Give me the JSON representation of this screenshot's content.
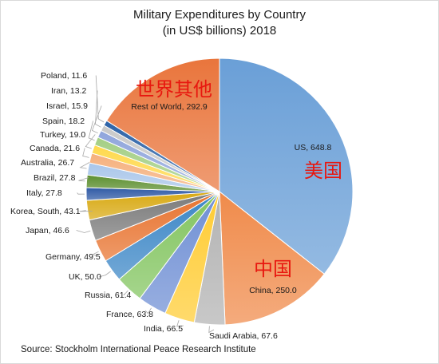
{
  "chart_data": {
    "type": "pie",
    "title_line1": "Military Expenditures by Country",
    "title_line2": "(in US$ billions) 2018",
    "source": "Source: Stockholm International Peace Research Institute",
    "slices": [
      {
        "name": "US",
        "value": 648.8,
        "color": "#6a9fd7",
        "label": "US, 648.8"
      },
      {
        "name": "China",
        "value": 250.0,
        "color": "#f08b4b",
        "label": "China, 250.0"
      },
      {
        "name": "Saudi Arabia",
        "value": 67.6,
        "color": "#b3b3b3",
        "label": "Saudi Arabia, 67.6"
      },
      {
        "name": "India",
        "value": 66.5,
        "color": "#ffcc33",
        "label": "India, 66.5"
      },
      {
        "name": "France",
        "value": 63.8,
        "color": "#6f8fd4",
        "label": "France, 63.8"
      },
      {
        "name": "Russia",
        "value": 61.4,
        "color": "#82c45f",
        "label": "Russia, 61.4"
      },
      {
        "name": "UK",
        "value": 50.0,
        "color": "#3b86c6",
        "label": "UK, 50.0"
      },
      {
        "name": "Germany",
        "value": 49.5,
        "color": "#e8732f",
        "label": "Germany, 49.5"
      },
      {
        "name": "Japan",
        "value": 46.6,
        "color": "#7a7a7a",
        "label": "Japan, 46.6"
      },
      {
        "name": "Korea, South",
        "value": 43.1,
        "color": "#d8a913",
        "label": "Korea, South, 43.1"
      },
      {
        "name": "Italy",
        "value": 27.8,
        "color": "#2f5aa5",
        "label": "Italy, 27.8"
      },
      {
        "name": "Brazil",
        "value": 27.8,
        "color": "#5c8f2f",
        "label": "Brazil, 27.8"
      },
      {
        "name": "Australia",
        "value": 26.7,
        "color": "#a9c6ea",
        "label": "Australia, 26.7"
      },
      {
        "name": "Canada",
        "value": 21.6,
        "color": "#f5b07d",
        "label": "Canada, 21.6"
      },
      {
        "name": "Turkey",
        "value": 19.0,
        "color": "#ffd94d",
        "label": "Turkey, 19.0"
      },
      {
        "name": "Spain",
        "value": 18.2,
        "color": "#a4cf85",
        "label": "Spain, 18.2"
      },
      {
        "name": "Israel",
        "value": 15.9,
        "color": "#8fa5dc",
        "label": "Israel, 15.9"
      },
      {
        "name": "Iran",
        "value": 13.2,
        "color": "#c9c9c9",
        "label": "Iran, 13.2"
      },
      {
        "name": "Poland",
        "value": 11.6,
        "color": "#2d63a8",
        "label": "Poland, 11.6"
      },
      {
        "name": "Rest of World",
        "value": 292.9,
        "color": "#e9753c",
        "label": "Rest of World, 292.9"
      }
    ],
    "annotations": [
      {
        "for": "US",
        "text": "美国"
      },
      {
        "for": "China",
        "text": "中国"
      },
      {
        "for": "Rest of World",
        "text": "世界其他"
      }
    ],
    "annotation_color": "#e8170f"
  }
}
